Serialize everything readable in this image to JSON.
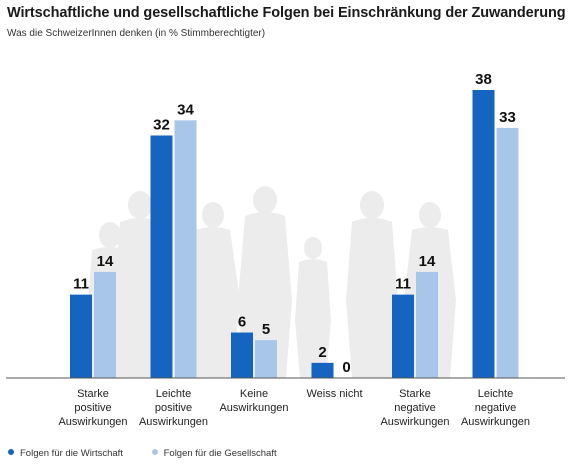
{
  "title": "Wirtschaftliche und gesellschaftliche Folgen bei Einschränkung der Zuwanderung",
  "subtitle": "Was die SchweizerInnen denken (in % Stimmberechtigter)",
  "chart_data": {
    "type": "bar",
    "categories": [
      [
        "Starke",
        "positive",
        "Auswirkungen"
      ],
      [
        "Leichte",
        "positive",
        "Auswirkungen"
      ],
      [
        "Keine",
        "Auswirkungen"
      ],
      [
        "Weiss nicht"
      ],
      [
        "Starke",
        "negative",
        "Auswirkungen"
      ],
      [
        "Leichte",
        "negative",
        "Auswirkungen"
      ]
    ],
    "series": [
      {
        "name": "Folgen für die Wirtschaft",
        "values": [
          11,
          32,
          6,
          2,
          11,
          38
        ],
        "color": "#1565c0"
      },
      {
        "name": "Folgen für die Gesellschaft",
        "values": [
          14,
          34,
          5,
          0,
          14,
          33
        ],
        "color": "#a8c6ea"
      }
    ],
    "ylim": [
      0,
      40
    ],
    "grid": false,
    "legend_position": "bottom-left"
  }
}
